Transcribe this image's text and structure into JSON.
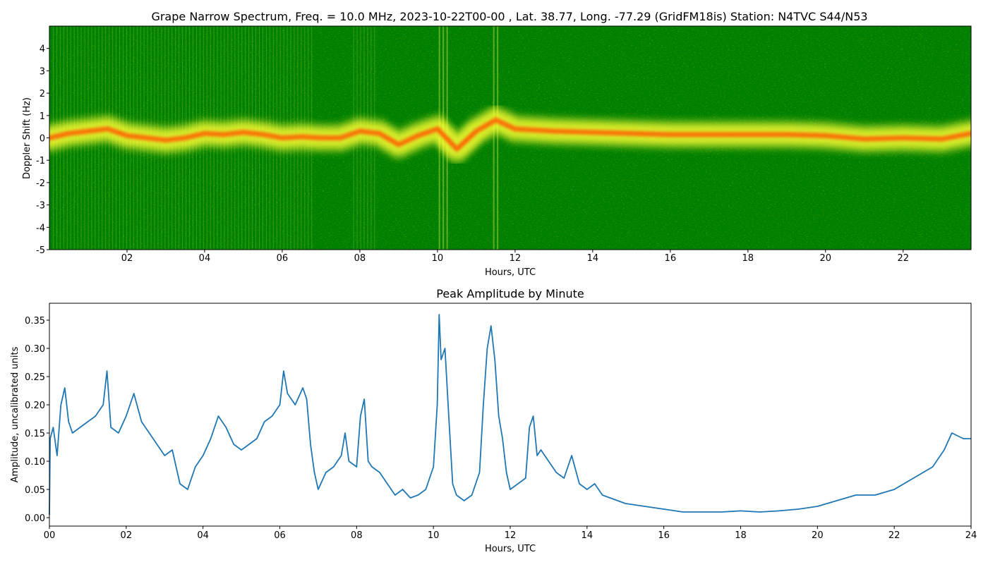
{
  "chart_data": [
    {
      "type": "heatmap",
      "title": "Grape Narrow Spectrum, Freq. = 10.0 MHz, 2023-10-22T00-00 , Lat.  38.77, Long. -77.29 (GridFM18is) Station: N4TVC S44/N53",
      "xlabel": "Hours, UTC",
      "ylabel": "Doppler Shift (Hz)",
      "xlim": [
        0,
        23.75
      ],
      "ylim": [
        -5,
        5
      ],
      "x_ticks": [
        "02",
        "04",
        "06",
        "08",
        "10",
        "12",
        "14",
        "16",
        "18",
        "20",
        "22"
      ],
      "x_tick_values": [
        2,
        4,
        6,
        8,
        10,
        12,
        14,
        16,
        18,
        20,
        22
      ],
      "y_ticks": [
        "-5",
        "-4",
        "-3",
        "-2",
        "-1",
        "0",
        "1",
        "2",
        "3",
        "4"
      ],
      "y_tick_values": [
        -5,
        -4,
        -3,
        -2,
        -1,
        0,
        1,
        2,
        3,
        4
      ],
      "colors": {
        "background": "#008000",
        "low": "#ffff00",
        "high": "#ff3300"
      },
      "center_trace": {
        "hours": [
          0,
          0.5,
          1,
          1.5,
          2,
          2.5,
          3,
          3.5,
          4,
          4.5,
          5,
          5.5,
          6,
          6.5,
          7,
          7.5,
          8,
          8.5,
          9,
          9.5,
          10,
          10.5,
          11,
          11.5,
          12,
          13,
          14,
          15,
          16,
          17,
          18,
          19,
          20,
          21,
          22,
          23,
          23.75
        ],
        "doppler_hz": [
          0.0,
          0.2,
          0.3,
          0.4,
          0.1,
          0.0,
          -0.1,
          0.0,
          0.2,
          0.15,
          0.25,
          0.15,
          0.0,
          0.05,
          0.0,
          0.0,
          0.3,
          0.2,
          -0.3,
          0.1,
          0.4,
          -0.5,
          0.3,
          0.8,
          0.4,
          0.3,
          0.25,
          0.2,
          0.15,
          0.15,
          0.15,
          0.15,
          0.1,
          -0.05,
          0.0,
          -0.05,
          0.2
        ]
      }
    },
    {
      "type": "line",
      "title": "Peak Amplitude by Minute",
      "xlabel": "Hours, UTC",
      "ylabel": "Amplitude, uncalibrated units",
      "xlim": [
        0,
        24
      ],
      "ylim": [
        -0.015,
        0.38
      ],
      "x_ticks": [
        "00",
        "02",
        "04",
        "06",
        "08",
        "10",
        "12",
        "14",
        "16",
        "18",
        "20",
        "22",
        "24"
      ],
      "x_tick_values": [
        0,
        2,
        4,
        6,
        8,
        10,
        12,
        14,
        16,
        18,
        20,
        22,
        24
      ],
      "y_ticks": [
        "0.00",
        "0.05",
        "0.10",
        "0.15",
        "0.20",
        "0.25",
        "0.30",
        "0.35"
      ],
      "y_tick_values": [
        0,
        0.05,
        0.1,
        0.15,
        0.2,
        0.25,
        0.3,
        0.35
      ],
      "line_color": "#1f77b4",
      "series": [
        {
          "x": [
            0,
            0.02,
            0.1,
            0.2,
            0.3,
            0.4,
            0.5,
            0.6,
            0.8,
            1.0,
            1.2,
            1.4,
            1.5,
            1.6,
            1.8,
            2.0,
            2.2,
            2.4,
            2.6,
            2.8,
            3.0,
            3.2,
            3.4,
            3.6,
            3.8,
            4.0,
            4.2,
            4.4,
            4.6,
            4.8,
            5.0,
            5.2,
            5.4,
            5.6,
            5.8,
            6.0,
            6.1,
            6.2,
            6.4,
            6.6,
            6.7,
            6.8,
            6.9,
            7.0,
            7.2,
            7.4,
            7.6,
            7.7,
            7.8,
            8.0,
            8.1,
            8.2,
            8.3,
            8.4,
            8.6,
            8.8,
            9.0,
            9.2,
            9.4,
            9.6,
            9.8,
            10.0,
            10.1,
            10.15,
            10.2,
            10.3,
            10.4,
            10.5,
            10.6,
            10.8,
            11.0,
            11.2,
            11.3,
            11.4,
            11.5,
            11.6,
            11.7,
            11.8,
            11.9,
            12.0,
            12.2,
            12.4,
            12.5,
            12.6,
            12.7,
            12.8,
            13.0,
            13.2,
            13.4,
            13.6,
            13.8,
            14.0,
            14.2,
            14.4,
            14.6,
            15.0,
            15.5,
            16.0,
            16.5,
            17.0,
            17.5,
            18.0,
            18.5,
            19.0,
            19.5,
            20.0,
            20.5,
            21.0,
            21.5,
            22.0,
            22.5,
            23.0,
            23.3,
            23.5,
            23.8,
            24.0
          ],
          "y": [
            0.005,
            0.14,
            0.16,
            0.11,
            0.2,
            0.23,
            0.17,
            0.15,
            0.16,
            0.17,
            0.18,
            0.2,
            0.26,
            0.16,
            0.15,
            0.18,
            0.22,
            0.17,
            0.15,
            0.13,
            0.11,
            0.12,
            0.06,
            0.05,
            0.09,
            0.11,
            0.14,
            0.18,
            0.16,
            0.13,
            0.12,
            0.13,
            0.14,
            0.17,
            0.18,
            0.2,
            0.26,
            0.22,
            0.2,
            0.23,
            0.21,
            0.13,
            0.08,
            0.05,
            0.08,
            0.09,
            0.11,
            0.15,
            0.1,
            0.09,
            0.18,
            0.21,
            0.1,
            0.09,
            0.08,
            0.06,
            0.04,
            0.05,
            0.035,
            0.04,
            0.05,
            0.09,
            0.2,
            0.36,
            0.28,
            0.3,
            0.18,
            0.06,
            0.04,
            0.03,
            0.04,
            0.08,
            0.2,
            0.3,
            0.34,
            0.28,
            0.18,
            0.14,
            0.08,
            0.05,
            0.06,
            0.07,
            0.16,
            0.18,
            0.11,
            0.12,
            0.1,
            0.08,
            0.07,
            0.11,
            0.06,
            0.05,
            0.06,
            0.04,
            0.035,
            0.025,
            0.02,
            0.015,
            0.01,
            0.01,
            0.01,
            0.012,
            0.01,
            0.012,
            0.015,
            0.02,
            0.03,
            0.04,
            0.04,
            0.05,
            0.07,
            0.09,
            0.12,
            0.15,
            0.14,
            0.14
          ]
        }
      ]
    }
  ]
}
